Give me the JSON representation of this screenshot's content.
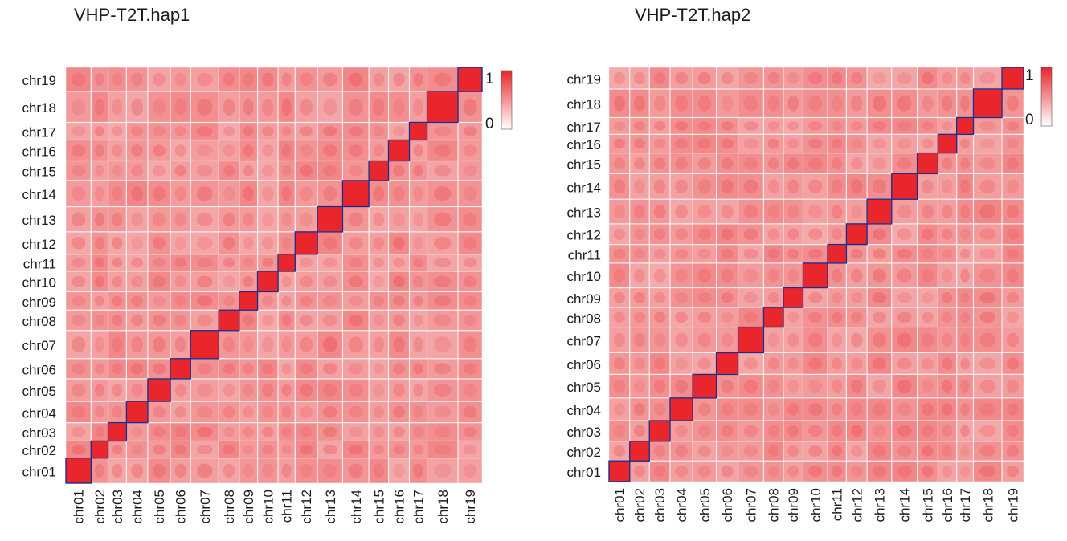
{
  "chart_data": [
    {
      "type": "heatmap",
      "title": "VHP-T2T.hap1",
      "chromosomes": [
        "chr01",
        "chr02",
        "chr03",
        "chr04",
        "chr05",
        "chr06",
        "chr07",
        "chr08",
        "chr09",
        "chr10",
        "chr11",
        "chr12",
        "chr13",
        "chr14",
        "chr15",
        "chr16",
        "chr17",
        "chr18",
        "chr19"
      ],
      "chromosome_relative_sizes": [
        1.18,
        0.8,
        0.86,
        1.0,
        1.06,
        0.95,
        1.32,
        0.96,
        0.86,
        0.96,
        0.8,
        1.05,
        1.18,
        1.23,
        0.92,
        0.98,
        0.83,
        1.45,
        1.13
      ],
      "colorbar": {
        "min_label": "0",
        "max_label": "1",
        "low_color": "#ffffff",
        "high_color": "#e8262b"
      },
      "diagonal_box_color": "#1f2d8a"
    },
    {
      "type": "heatmap",
      "title": "VHP-T2T.hap2",
      "chromosomes": [
        "chr01",
        "chr02",
        "chr03",
        "chr04",
        "chr05",
        "chr06",
        "chr07",
        "chr08",
        "chr09",
        "chr10",
        "chr11",
        "chr12",
        "chr13",
        "chr14",
        "chr15",
        "chr16",
        "chr17",
        "chr18",
        "chr19"
      ],
      "chromosome_relative_sizes": [
        1.05,
        1.0,
        1.05,
        1.15,
        1.2,
        1.1,
        1.3,
        1.0,
        1.0,
        1.25,
        0.95,
        1.05,
        1.25,
        1.3,
        1.05,
        0.95,
        0.85,
        1.45,
        1.1
      ],
      "colorbar": {
        "min_label": "0",
        "max_label": "1",
        "low_color": "#ffffff",
        "high_color": "#e8262b"
      },
      "diagonal_box_color": "#1f2d8a"
    }
  ]
}
